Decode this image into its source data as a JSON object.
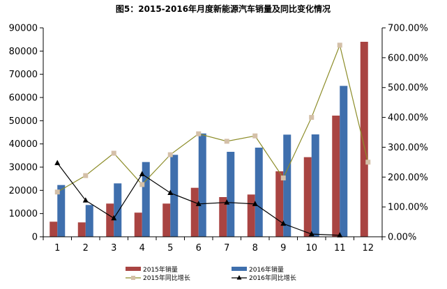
{
  "chart_data": {
    "type": "bar",
    "title": "图5：2015-2016年月度新能源汽车销量及同比变化情况",
    "categories": [
      "1",
      "2",
      "3",
      "4",
      "5",
      "6",
      "7",
      "8",
      "9",
      "10",
      "11",
      "12"
    ],
    "y_left": {
      "ylim": [
        0,
        90000
      ],
      "ticks": [
        "0",
        "10000",
        "20000",
        "30000",
        "40000",
        "50000",
        "60000",
        "70000",
        "80000",
        "90000"
      ]
    },
    "y_right": {
      "ylim": [
        0,
        7
      ],
      "ticks": [
        "0.00%",
        "100.00%",
        "200.00%",
        "300.00%",
        "400.00%",
        "500.00%",
        "600.00%",
        "700.00%"
      ]
    },
    "series": [
      {
        "name": "2015年销量",
        "kind": "bar",
        "axis": "left",
        "color": "#A94442",
        "values": [
          6500,
          6200,
          14300,
          10400,
          14300,
          21100,
          17100,
          18200,
          28200,
          34300,
          52200,
          84000
        ]
      },
      {
        "name": "2016年销量",
        "kind": "bar",
        "axis": "left",
        "color": "#3F6FAD",
        "values": [
          22300,
          13700,
          23000,
          32200,
          35300,
          44500,
          36600,
          38400,
          44000,
          44100,
          65000,
          null
        ]
      },
      {
        "name": "2015年同比增长",
        "kind": "line",
        "axis": "right",
        "color": "#8C8C28",
        "marker_color": "#D4C0A8",
        "marker": "square",
        "values": [
          1.5,
          2.05,
          2.8,
          1.75,
          2.75,
          3.45,
          3.2,
          3.38,
          1.97,
          4.0,
          6.42,
          2.5
        ]
      },
      {
        "name": "2016年同比增长",
        "kind": "line",
        "axis": "right",
        "color": "#000000",
        "marker": "triangle",
        "values": [
          2.47,
          1.22,
          0.62,
          2.1,
          1.47,
          1.1,
          1.15,
          1.1,
          0.44,
          0.09,
          0.05,
          null
        ]
      }
    ],
    "legend_position": "bottom",
    "grid": false
  }
}
